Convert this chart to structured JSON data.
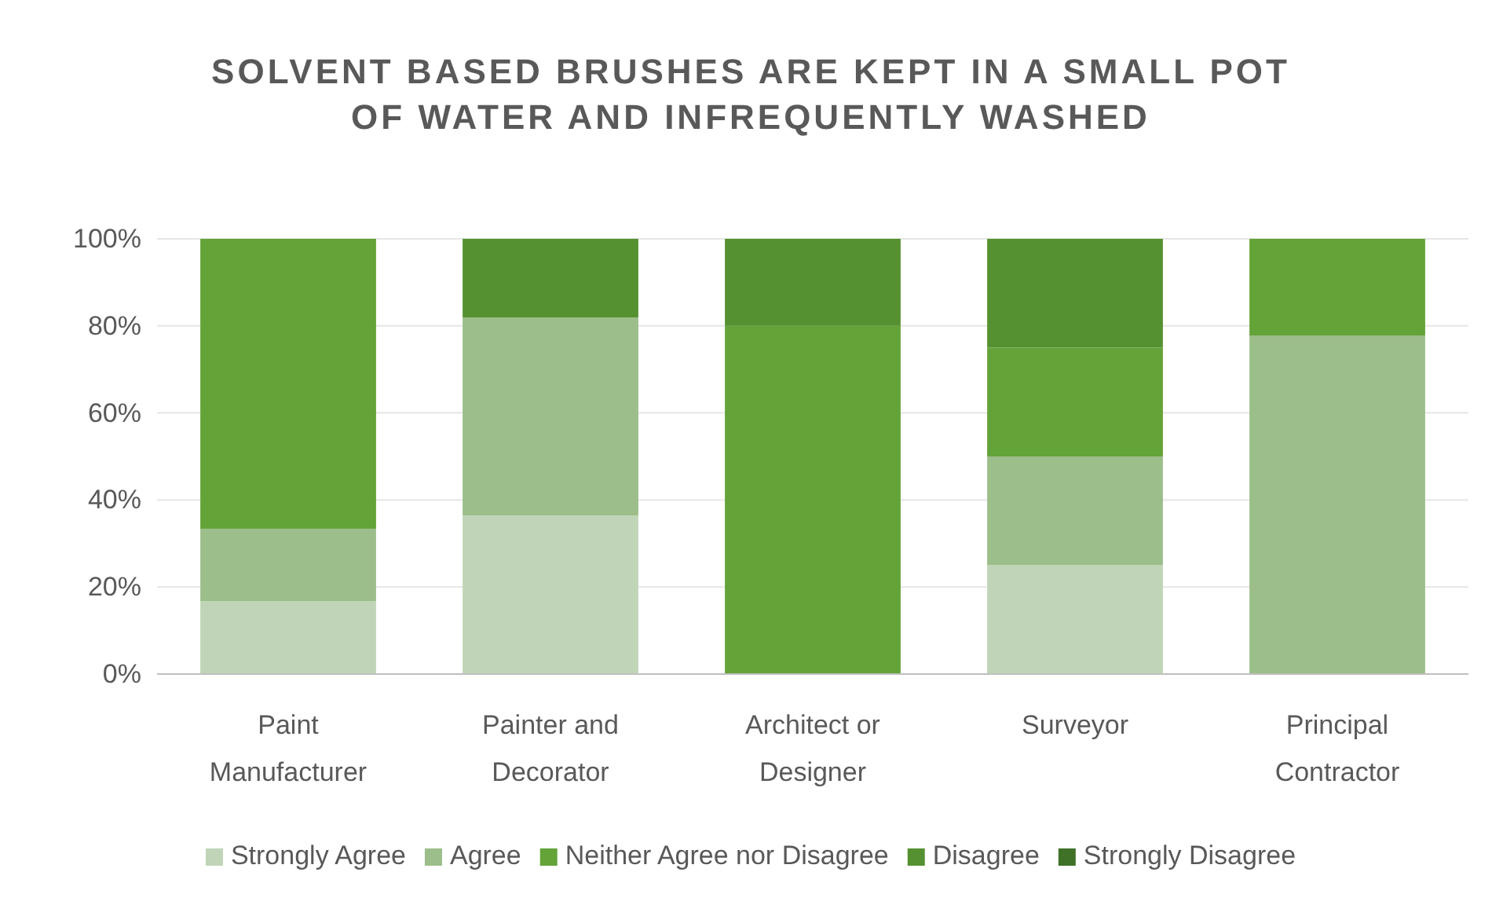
{
  "chart_data": {
    "type": "bar",
    "stacked": true,
    "title": "SOLVENT BASED BRUSHES ARE KEPT IN A SMALL POT OF WATER AND INFREQUENTLY WASHED",
    "categories": [
      "Paint Manufacturer",
      "Painter and Decorator",
      "Architect or Designer",
      "Surveyor",
      "Principal Contractor"
    ],
    "series": [
      {
        "name": "Strongly Agree",
        "color": "#c0d5b7",
        "values": [
          16.7,
          36.4,
          0,
          25,
          0
        ]
      },
      {
        "name": "Agree",
        "color": "#9cbe8a",
        "values": [
          16.7,
          45.5,
          0,
          25,
          77.8
        ]
      },
      {
        "name": "Neither Agree nor Disagree",
        "color": "#63a338",
        "values": [
          66.6,
          0,
          80,
          25,
          22.2
        ]
      },
      {
        "name": "Disagree",
        "color": "#559131",
        "values": [
          0,
          18.1,
          20,
          25,
          0
        ]
      },
      {
        "name": "Strongly Disagree",
        "color": "#3f7127",
        "values": [
          0,
          0,
          0,
          0,
          0
        ]
      }
    ],
    "ylim": [
      0,
      100
    ],
    "yticks": [
      {
        "value": 0,
        "label": "0%"
      },
      {
        "value": 20,
        "label": "20%"
      },
      {
        "value": 40,
        "label": "40%"
      },
      {
        "value": 60,
        "label": "60%"
      },
      {
        "value": 80,
        "label": "80%"
      },
      {
        "value": 100,
        "label": "100%"
      }
    ],
    "grid": "y",
    "legend": "bottom"
  }
}
